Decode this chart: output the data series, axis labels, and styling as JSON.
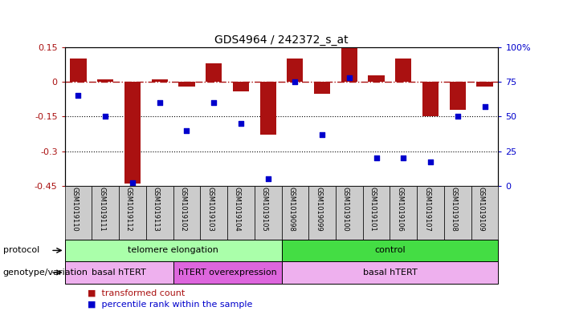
{
  "title": "GDS4964 / 242372_s_at",
  "samples": [
    "GSM1019110",
    "GSM1019111",
    "GSM1019112",
    "GSM1019113",
    "GSM1019102",
    "GSM1019103",
    "GSM1019104",
    "GSM1019105",
    "GSM1019098",
    "GSM1019099",
    "GSM1019100",
    "GSM1019101",
    "GSM1019106",
    "GSM1019107",
    "GSM1019108",
    "GSM1019109"
  ],
  "bar_values": [
    0.1,
    0.01,
    -0.44,
    0.01,
    -0.02,
    0.08,
    -0.04,
    -0.23,
    0.1,
    -0.05,
    0.15,
    0.03,
    0.1,
    -0.15,
    -0.12,
    -0.02
  ],
  "dot_values": [
    65,
    50,
    2,
    60,
    40,
    60,
    45,
    5,
    75,
    37,
    78,
    20,
    20,
    17,
    50,
    57
  ],
  "bar_color": "#aa1111",
  "dot_color": "#0000cc",
  "ylim_left": [
    -0.45,
    0.15
  ],
  "ylim_right": [
    0,
    100
  ],
  "yticks_left": [
    -0.45,
    -0.3,
    -0.15,
    0.0,
    0.15
  ],
  "yticks_right": [
    0,
    25,
    50,
    75,
    100
  ],
  "dotted_lines": [
    -0.15,
    -0.3
  ],
  "protocol_groups": [
    {
      "label": "telomere elongation",
      "start": 0,
      "end": 8,
      "color": "#aaffaa"
    },
    {
      "label": "control",
      "start": 8,
      "end": 16,
      "color": "#44dd44"
    }
  ],
  "genotype_groups": [
    {
      "label": "basal hTERT",
      "start": 0,
      "end": 4,
      "color": "#eeb0ee"
    },
    {
      "label": "hTERT overexpression",
      "start": 4,
      "end": 8,
      "color": "#dd66dd"
    },
    {
      "label": "basal hTERT",
      "start": 8,
      "end": 16,
      "color": "#eeb0ee"
    }
  ],
  "legend_items": [
    {
      "label": "transformed count",
      "color": "#aa1111"
    },
    {
      "label": "percentile rank within the sample",
      "color": "#0000cc"
    }
  ],
  "protocol_label": "protocol",
  "genotype_label": "genotype/variation",
  "cell_color": "#cccccc",
  "background_color": "#ffffff"
}
